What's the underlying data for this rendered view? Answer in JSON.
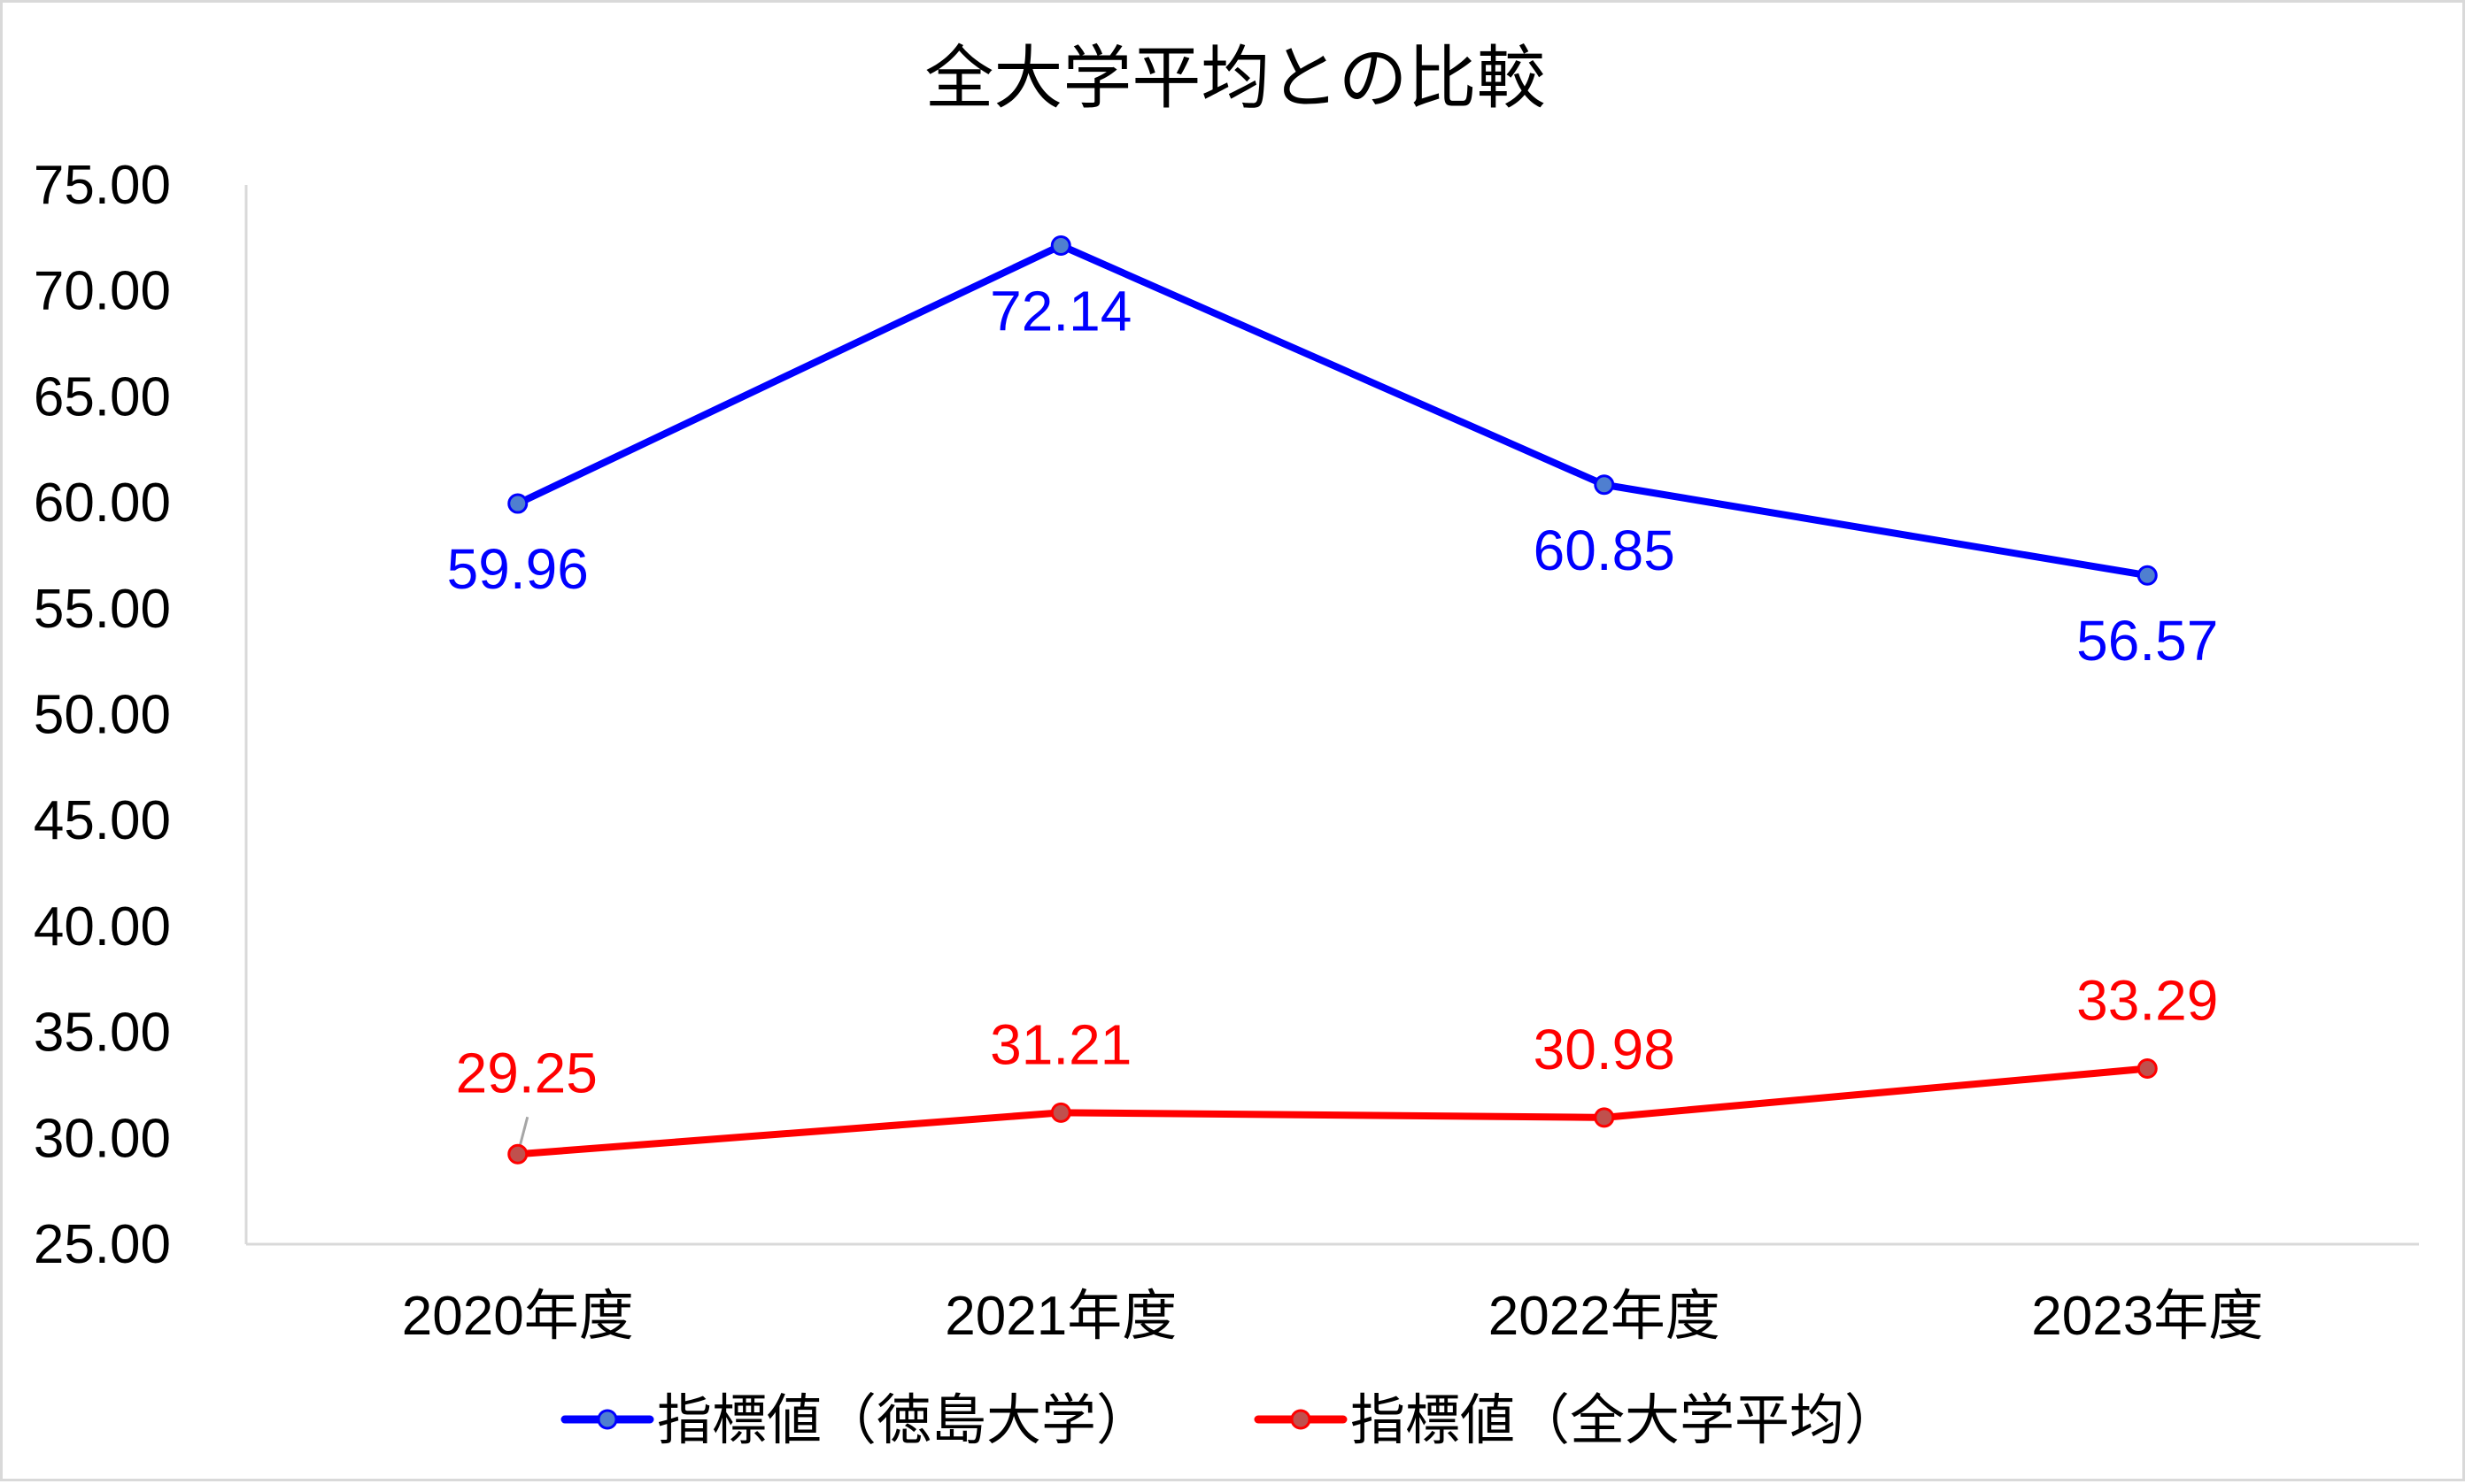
{
  "chart_data": {
    "type": "line",
    "title": "全大学平均との比較",
    "categories": [
      "2020年度",
      "2021年度",
      "2022年度",
      "2023年度"
    ],
    "ylim": [
      25,
      75
    ],
    "yticks": [
      "25.00",
      "30.00",
      "35.00",
      "40.00",
      "45.00",
      "50.00",
      "55.00",
      "60.00",
      "65.00",
      "70.00",
      "75.00"
    ],
    "grid": false,
    "legend_position": "bottom",
    "series": [
      {
        "name": "指標値（徳島大学）",
        "values": [
          59.96,
          72.14,
          60.85,
          56.57
        ],
        "labels": [
          "59.96",
          "72.14",
          "60.85",
          "56.57"
        ],
        "color": "#0000ff",
        "marker_fill": "#4f7fd0",
        "label_position": "below"
      },
      {
        "name": "指標値（全大学平均）",
        "values": [
          29.25,
          31.21,
          30.98,
          33.29
        ],
        "labels": [
          "29.25",
          "31.21",
          "30.98",
          "33.29"
        ],
        "color": "#ff0000",
        "marker_fill": "#c0504d",
        "label_position": "above"
      }
    ]
  }
}
